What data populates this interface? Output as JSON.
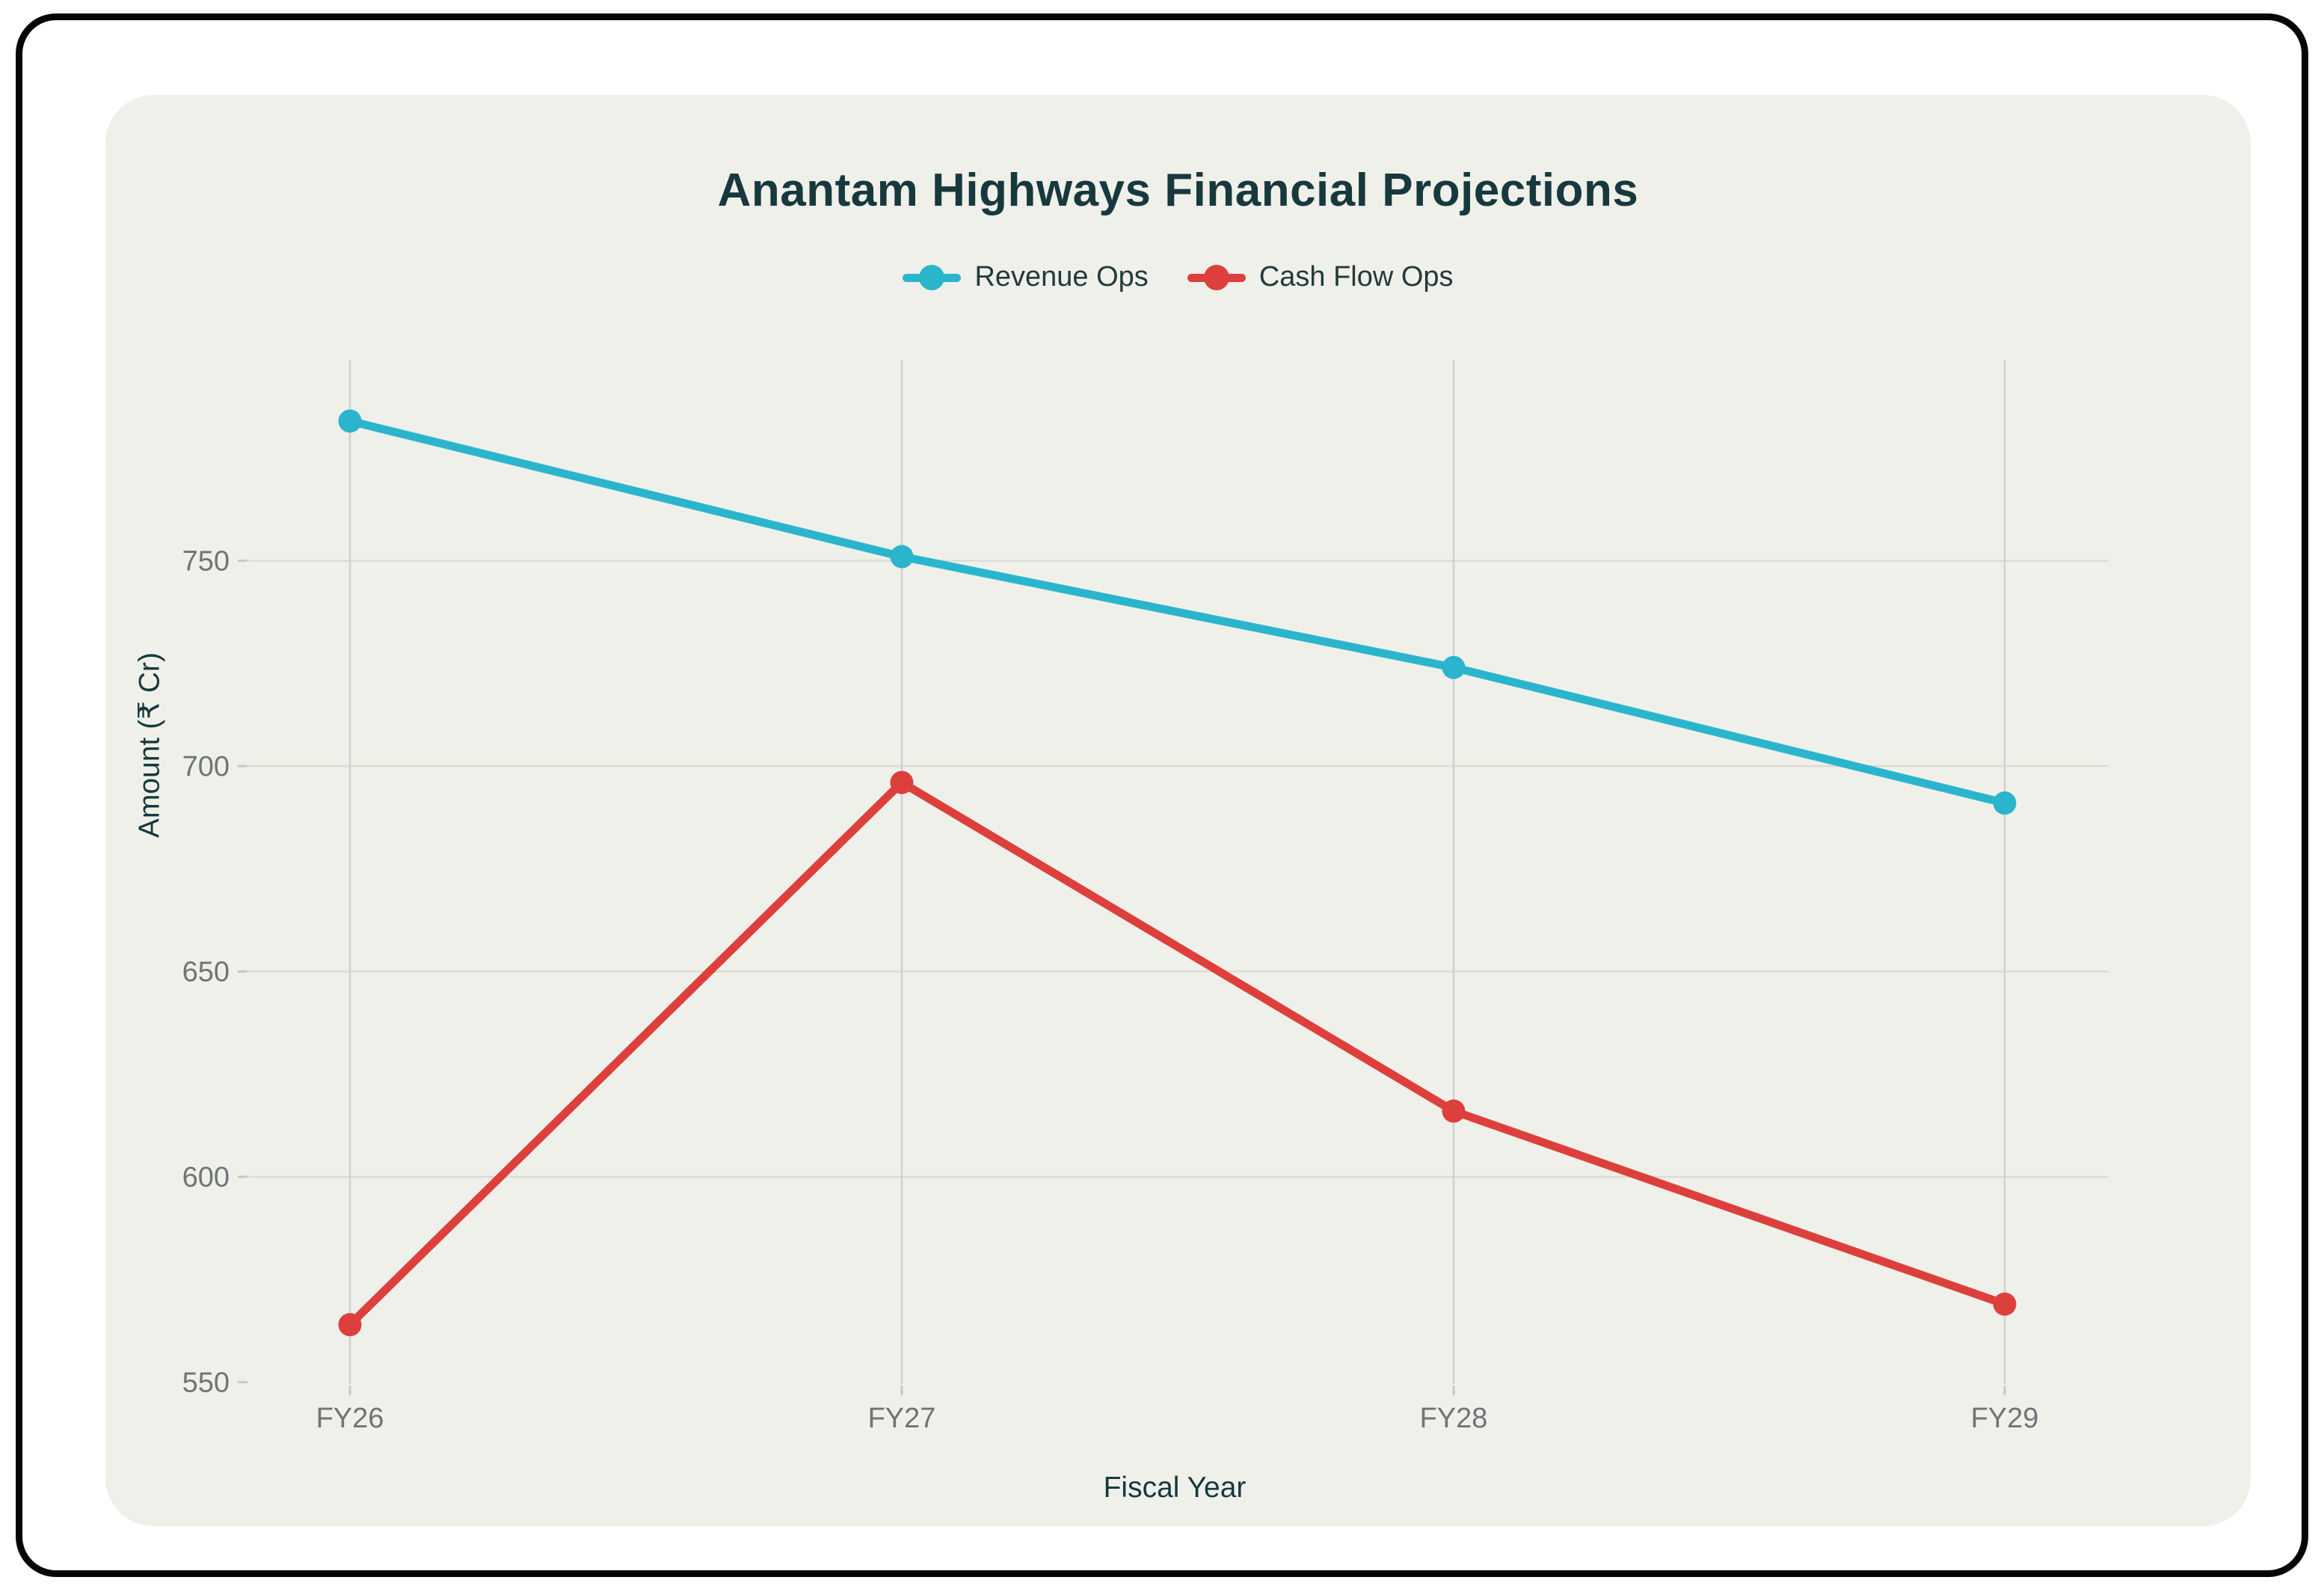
{
  "card": {
    "title": "Anantam Highways Financial Projections"
  },
  "legend": {
    "items": [
      {
        "label": "Revenue Ops",
        "color": "#2ab5cd"
      },
      {
        "label": "Cash Flow Ops",
        "color": "#dd403c"
      }
    ]
  },
  "axes": {
    "y_title": "Amount (₹ Cr)",
    "x_title": "Fiscal Year"
  },
  "chart_data": {
    "type": "line",
    "title": "Anantam Highways Financial Projections",
    "categories": [
      "FY26",
      "FY27",
      "FY28",
      "FY29"
    ],
    "series": [
      {
        "name": "Revenue Ops",
        "color": "#2ab5cd",
        "values": [
          784,
          751,
          724,
          691
        ]
      },
      {
        "name": "Cash Flow Ops",
        "color": "#dd403c",
        "values": [
          564,
          696,
          616,
          569
        ]
      }
    ],
    "xlabel": "Fiscal Year",
    "ylabel": "Amount (₹ Cr)",
    "ylim": [
      550,
      800
    ],
    "y_ticks": [
      550,
      600,
      650,
      700,
      750
    ],
    "grid": true,
    "legend_position": "top",
    "marker": "circle",
    "colors": {
      "background_panel": "#f0f0ea",
      "grid_line": "#dcdcd4",
      "grid_line_vertical": "#d2d2ca",
      "tick_mark": "#c9c9c1",
      "tick_label": "#6f7478",
      "axis_title": "#17393d",
      "title": "#17393d"
    }
  }
}
